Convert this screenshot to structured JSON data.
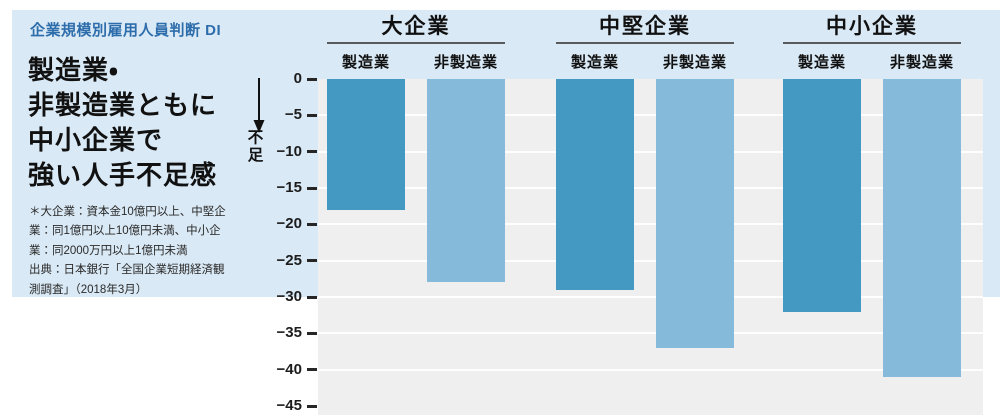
{
  "panel": {
    "title": "企業規模別雇用人員判断 DI",
    "headline_lines": [
      "製造業・",
      "非製造業ともに",
      "中小企業で",
      "強い人手不足感"
    ],
    "footnote_lines": [
      "＊大企業：資本金10億円以上、中堅企",
      "業：同1億円以上10億円未満、中小企",
      "業：同2000万円以上1億円未満",
      "出典：日本銀行「全国企業短期経済観",
      "測調査」（2018年3月）"
    ]
  },
  "chart_data": {
    "type": "bar",
    "title": "企業規模別雇用人員判断 DI",
    "groups": [
      {
        "label": "大企業",
        "bars": [
          {
            "label": "製造業",
            "value": -18
          },
          {
            "label": "非製造業",
            "value": -28
          }
        ]
      },
      {
        "label": "中堅企業",
        "bars": [
          {
            "label": "製造業",
            "value": -29
          },
          {
            "label": "非製造業",
            "value": -37
          }
        ]
      },
      {
        "label": "中小企業",
        "bars": [
          {
            "label": "製造業",
            "value": -32
          },
          {
            "label": "非製造業",
            "value": -41
          }
        ]
      }
    ],
    "series_labels": [
      "製造業",
      "非製造業"
    ],
    "ylim": [
      -45,
      0
    ],
    "yticks": [
      0,
      -5,
      -10,
      -15,
      -20,
      -25,
      -30,
      -35,
      -40,
      -45
    ],
    "ytick_labels": [
      "0",
      "−5",
      "−10",
      "−15",
      "−20",
      "−25",
      "−30",
      "−35",
      "−40",
      "−45"
    ],
    "axis_annotation": "不足",
    "axis_annotation_arrow": "down",
    "grid": true,
    "legend_position": "none",
    "colors": {
      "manufacturing_bar": "#4499c2",
      "non_manufacturing_bar": "#85badb",
      "panel_bg": "#d9e9f5",
      "plot_bg": "#efefef",
      "title_text": "#2e6dab",
      "arrow": "#111111"
    }
  }
}
